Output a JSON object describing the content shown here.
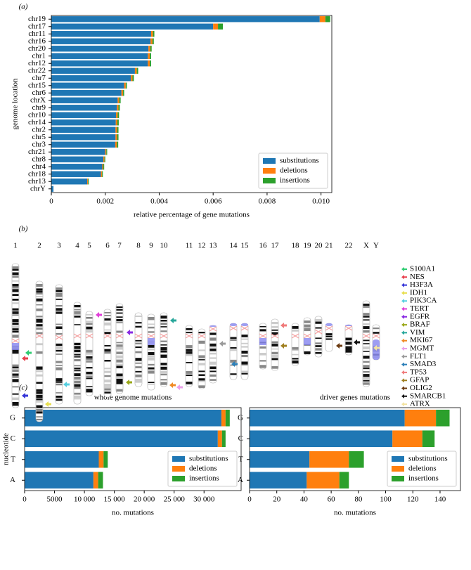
{
  "chart_data": [
    {
      "type": "hbar_stacked",
      "panel": "(a)",
      "categories": [
        "chr19",
        "chr17",
        "chr11",
        "chr16",
        "chr20",
        "chr1",
        "chr12",
        "chr22",
        "chr7",
        "chr15",
        "chr6",
        "chrX",
        "chr9",
        "chr10",
        "chr14",
        "chr2",
        "chr5",
        "chr3",
        "chr21",
        "chr8",
        "chr4",
        "chr18",
        "chr13",
        "chrY"
      ],
      "series": [
        {
          "name": "substitutions",
          "color": "#1f77b4",
          "values": [
            0.00995,
            0.006,
            0.0037,
            0.00368,
            0.0036,
            0.00358,
            0.00358,
            0.0031,
            0.00295,
            0.0027,
            0.0026,
            0.00246,
            0.00243,
            0.0024,
            0.00239,
            0.00238,
            0.00238,
            0.00237,
            0.002,
            0.00193,
            0.00189,
            0.00184,
            0.00133,
            8e-05
          ]
        },
        {
          "name": "deletions",
          "color": "#ff7f0e",
          "values": [
            0.00021,
            0.00018,
            7e-05,
            7e-05,
            7e-05,
            7e-05,
            7e-05,
            7e-05,
            6e-05,
            6e-05,
            6e-05,
            6e-05,
            6e-05,
            6e-05,
            6e-05,
            6e-05,
            6e-05,
            6e-05,
            4e-05,
            4e-05,
            4e-05,
            4e-05,
            3e-05,
            0
          ]
        },
        {
          "name": "insertions",
          "color": "#2ca02c",
          "values": [
            0.00018,
            0.00018,
            5e-05,
            5e-05,
            5e-05,
            5e-05,
            5e-05,
            5e-05,
            5e-05,
            4e-05,
            4e-05,
            5e-05,
            5e-05,
            5e-05,
            5e-05,
            5e-05,
            5e-05,
            5e-05,
            3e-05,
            3e-05,
            3e-05,
            3e-05,
            3e-05,
            0
          ]
        }
      ],
      "xlim": [
        0,
        0.0104
      ],
      "xticks": [
        0,
        0.002,
        0.004,
        0.006,
        0.008,
        {
          "value": 0.01,
          "label": "0.010"
        }
      ],
      "xlabel": "relative percentage of gene mutations",
      "ylabel": "genome location",
      "legend": "lower right"
    },
    {
      "type": "hbar_stacked",
      "panel": "(c)",
      "title": "whole genome mutations",
      "categories": [
        "G",
        "C",
        "T",
        "A"
      ],
      "series": [
        {
          "name": "substitutions",
          "color": "#1f77b4",
          "values": [
            32900,
            32300,
            12400,
            11500
          ]
        },
        {
          "name": "deletions",
          "color": "#ff7f0e",
          "values": [
            700,
            700,
            800,
            800
          ]
        },
        {
          "name": "insertions",
          "color": "#2ca02c",
          "values": [
            700,
            600,
            700,
            800
          ]
        }
      ],
      "xlim": [
        0,
        36200
      ],
      "xticks": [
        0,
        5000,
        {
          "value": 10000,
          "label": "10 000"
        },
        {
          "value": 15000,
          "label": "15 000"
        },
        {
          "value": 20000,
          "label": "20 000"
        },
        {
          "value": 25000,
          "label": "25 000"
        },
        {
          "value": 30000,
          "label": "30 000"
        }
      ],
      "xlabel": "no. mutations",
      "ylabel": "nucleotide",
      "legend": "lower right"
    },
    {
      "type": "hbar_stacked",
      "title": "driver genes mutations",
      "categories": [
        "G",
        "C",
        "T",
        "A"
      ],
      "series": [
        {
          "name": "substitutions",
          "color": "#1f77b4",
          "values": [
            114,
            105,
            44,
            42
          ]
        },
        {
          "name": "deletions",
          "color": "#ff7f0e",
          "values": [
            23,
            22,
            29,
            24
          ]
        },
        {
          "name": "insertions",
          "color": "#2ca02c",
          "values": [
            10,
            9,
            11,
            7
          ]
        }
      ],
      "xlim": [
        0,
        155
      ],
      "xticks": [
        0,
        20,
        40,
        60,
        80,
        100,
        120,
        140
      ],
      "xlabel": "no. mutations",
      "legend": "lower right"
    }
  ],
  "ideogram": {
    "panel": "(b)",
    "chromosomes": [
      "1",
      "2",
      "3",
      "4",
      "5",
      "6",
      "7",
      "8",
      "9",
      "10",
      "11",
      "12",
      "13",
      "14",
      "15",
      "16",
      "17",
      "18",
      "19",
      "20",
      "21",
      "22",
      "X",
      "Y"
    ],
    "genes": [
      {
        "name": "S100A1",
        "color": "#2ecc71"
      },
      {
        "name": "NES",
        "color": "#e8414e"
      },
      {
        "name": "H3F3A",
        "color": "#3535d8"
      },
      {
        "name": "IDH1",
        "color": "#e8df50"
      },
      {
        "name": "PIK3CA",
        "color": "#55cfe0"
      },
      {
        "name": "TERT",
        "color": "#e03fd8"
      },
      {
        "name": "EGFR",
        "color": "#8a2be2"
      },
      {
        "name": "BRAF",
        "color": "#9aa818"
      },
      {
        "name": "VIM",
        "color": "#26a69a"
      },
      {
        "name": "MKI67",
        "color": "#f08a24"
      },
      {
        "name": "MGMT",
        "color": "#eaa0ea"
      },
      {
        "name": "FLT1",
        "color": "#9a9a9a"
      },
      {
        "name": "SMAD3",
        "color": "#2c7fb8"
      },
      {
        "name": "TP53",
        "color": "#f07a7a"
      },
      {
        "name": "GFAP",
        "color": "#a08020"
      },
      {
        "name": "OLIG2",
        "color": "#6b3a10"
      },
      {
        "name": "SMARCB1",
        "color": "#111111"
      },
      {
        "name": "ATRX",
        "color": "#f3e3a0"
      }
    ]
  }
}
